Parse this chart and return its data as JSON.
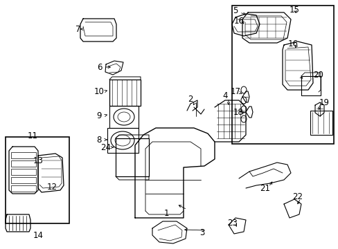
{
  "background_color": "#ffffff",
  "image_b64": ""
}
